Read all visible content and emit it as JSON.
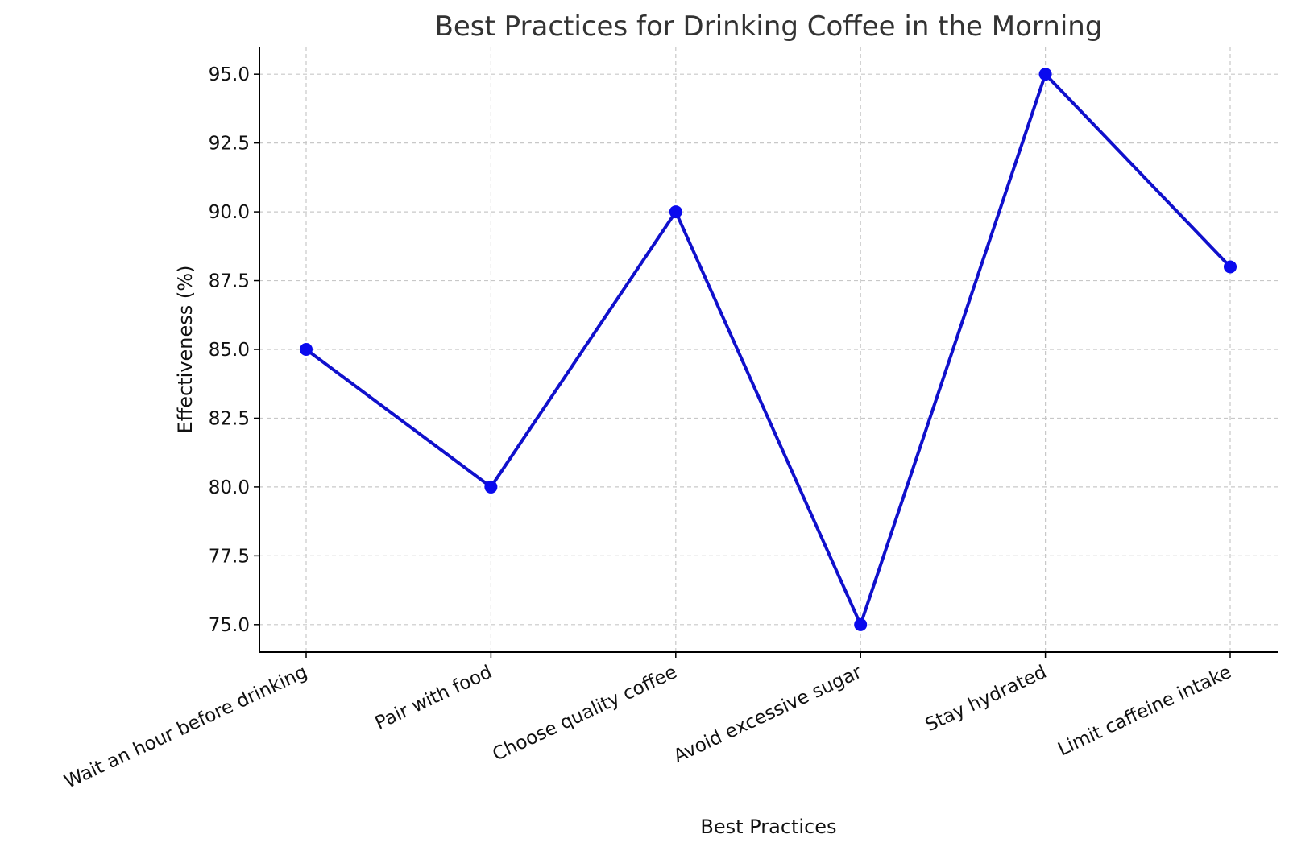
{
  "chart_data": {
    "type": "line",
    "title": "Best Practices for Drinking Coffee in the Morning",
    "xlabel": "Best Practices",
    "ylabel": "Effectiveness (%)",
    "categories": [
      "Wait an hour before drinking",
      "Pair with food",
      "Choose quality coffee",
      "Avoid excessive sugar",
      "Stay hydrated",
      "Limit caffeine intake"
    ],
    "values": [
      85,
      80,
      90,
      75,
      95,
      88
    ],
    "ylim": [
      74,
      96
    ],
    "yticks": [
      "75.0",
      "77.5",
      "80.0",
      "82.5",
      "85.0",
      "87.5",
      "90.0",
      "92.5",
      "95.0"
    ],
    "grid": true,
    "line_color": "#1010cc",
    "marker_color": "#0a0aee"
  }
}
